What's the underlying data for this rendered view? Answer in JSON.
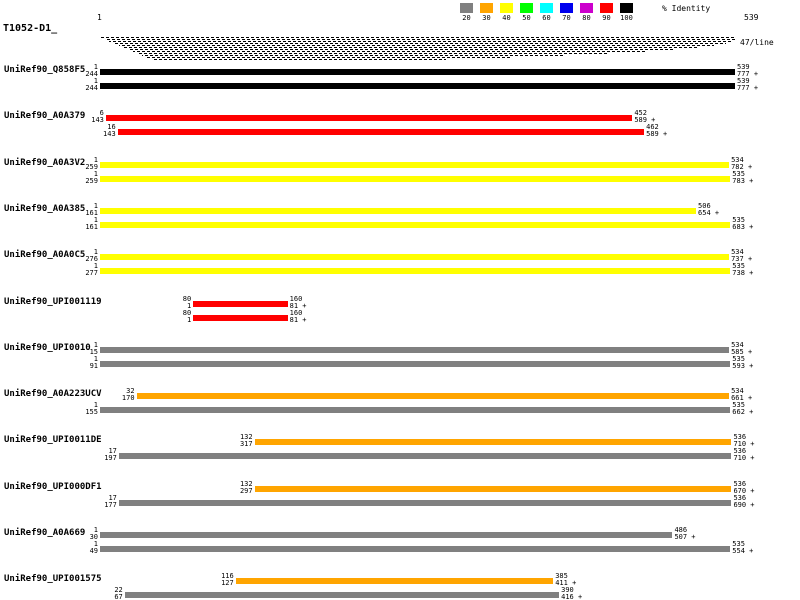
{
  "page": {
    "query_label": "T1052-D1_",
    "axis_start": "1",
    "axis_end": "539",
    "per_line": "47/line",
    "legend_title": "% Identity"
  },
  "legend_items": [
    {
      "label": "20",
      "color": "#808080"
    },
    {
      "label": "30",
      "color": "#FFA500"
    },
    {
      "label": "40",
      "color": "#FFFF00"
    },
    {
      "label": "50",
      "color": "#00FF00"
    },
    {
      "label": "60",
      "color": "#00FFFF"
    },
    {
      "label": "70",
      "color": "#0000EE"
    },
    {
      "label": "80",
      "color": "#CC00CC"
    },
    {
      "label": "90",
      "color": "#FF0000"
    },
    {
      "label": "100",
      "color": "#000000"
    }
  ],
  "chart_data": {
    "type": "bar",
    "title": "Alignment coverage of query T1052-D1 (length 539) colored by % identity",
    "x_axis": {
      "label": "query position",
      "min": 1,
      "max": 539
    },
    "legend_position": "top-right",
    "hatch_lines": [
      {
        "from": 2,
        "to": 539
      },
      {
        "from": 5,
        "to": 539
      },
      {
        "from": 9,
        "to": 537
      },
      {
        "from": 13,
        "to": 531
      },
      {
        "from": 17,
        "to": 521
      },
      {
        "from": 21,
        "to": 507
      },
      {
        "from": 25,
        "to": 488
      },
      {
        "from": 29,
        "to": 463
      },
      {
        "from": 33,
        "to": 432
      },
      {
        "from": 37,
        "to": 394
      },
      {
        "from": 41,
        "to": 348
      },
      {
        "from": 45,
        "to": 294
      }
    ],
    "hits": [
      {
        "label": "UniRef90_Q858F5",
        "alignments": [
          {
            "identity_bin": "100",
            "color": "#000000",
            "query_start": 1,
            "query_end": 539,
            "subject_start": 244,
            "subject_end": 777,
            "strand": "+"
          },
          {
            "identity_bin": "100",
            "color": "#000000",
            "query_start": 1,
            "query_end": 539,
            "subject_start": 244,
            "subject_end": 777,
            "strand": "+"
          }
        ]
      },
      {
        "label": "UniRef90_A0A379",
        "alignments": [
          {
            "identity_bin": "90",
            "color": "#FF0000",
            "query_start": 6,
            "query_end": 452,
            "subject_start": 143,
            "subject_end": 589,
            "strand": "+"
          },
          {
            "identity_bin": "90",
            "color": "#FF0000",
            "query_start": 16,
            "query_end": 462,
            "subject_start": 143,
            "subject_end": 589,
            "strand": "+"
          }
        ]
      },
      {
        "label": "UniRef90_A0A3V2",
        "alignments": [
          {
            "identity_bin": "40",
            "color": "#FFFF00",
            "query_start": 1,
            "query_end": 534,
            "subject_start": 259,
            "subject_end": 782,
            "strand": "+"
          },
          {
            "identity_bin": "40",
            "color": "#FFFF00",
            "query_start": 1,
            "query_end": 535,
            "subject_start": 259,
            "subject_end": 783,
            "strand": "+"
          }
        ]
      },
      {
        "label": "UniRef90_A0A385",
        "alignments": [
          {
            "identity_bin": "40",
            "color": "#FFFF00",
            "query_start": 1,
            "query_end": 506,
            "subject_start": 161,
            "subject_end": 654,
            "strand": "+"
          },
          {
            "identity_bin": "40",
            "color": "#FFFF00",
            "query_start": 1,
            "query_end": 535,
            "subject_start": 161,
            "subject_end": 683,
            "strand": "+"
          }
        ]
      },
      {
        "label": "UniRef90_A0A0C5",
        "alignments": [
          {
            "identity_bin": "40",
            "color": "#FFFF00",
            "query_start": 1,
            "query_end": 534,
            "subject_start": 276,
            "subject_end": 737,
            "strand": "+"
          },
          {
            "identity_bin": "40",
            "color": "#FFFF00",
            "query_start": 1,
            "query_end": 535,
            "subject_start": 277,
            "subject_end": 738,
            "strand": "+"
          }
        ]
      },
      {
        "label": "UniRef90_UPI001119",
        "alignments": [
          {
            "identity_bin": "90",
            "color": "#FF0000",
            "query_start": 80,
            "query_end": 160,
            "subject_start": 1,
            "subject_end": 81,
            "strand": "+"
          },
          {
            "identity_bin": "90",
            "color": "#FF0000",
            "query_start": 80,
            "query_end": 160,
            "subject_start": 1,
            "subject_end": 81,
            "strand": "+"
          }
        ]
      },
      {
        "label": "UniRef90_UPI0010",
        "alignments": [
          {
            "identity_bin": "20",
            "color": "#808080",
            "query_start": 1,
            "query_end": 534,
            "subject_start": 15,
            "subject_end": 585,
            "strand": "+"
          },
          {
            "identity_bin": "20",
            "color": "#808080",
            "query_start": 1,
            "query_end": 535,
            "subject_start": 91,
            "subject_end": 593,
            "strand": "+"
          }
        ]
      },
      {
        "label": "UniRef90_A0A223UCV",
        "alignments": [
          {
            "identity_bin": "30",
            "color": "#FFA500",
            "query_start": 32,
            "query_end": 534,
            "subject_start": 170,
            "subject_end": 661,
            "strand": "+"
          },
          {
            "identity_bin": "20",
            "color": "#808080",
            "query_start": 1,
            "query_end": 535,
            "subject_start": 155,
            "subject_end": 662,
            "strand": "+"
          }
        ]
      },
      {
        "label": "UniRef90_UPI0011DE",
        "alignments": [
          {
            "identity_bin": "30",
            "color": "#FFA500",
            "query_start": 132,
            "query_end": 536,
            "subject_start": 317,
            "subject_end": 710,
            "strand": "+"
          },
          {
            "identity_bin": "20",
            "color": "#808080",
            "query_start": 17,
            "query_end": 536,
            "subject_start": 197,
            "subject_end": 710,
            "strand": "+"
          }
        ]
      },
      {
        "label": "UniRef90_UPI000DF1",
        "alignments": [
          {
            "identity_bin": "30",
            "color": "#FFA500",
            "query_start": 132,
            "query_end": 536,
            "subject_start": 297,
            "subject_end": 670,
            "strand": "+"
          },
          {
            "identity_bin": "20",
            "color": "#808080",
            "query_start": 17,
            "query_end": 536,
            "subject_start": 177,
            "subject_end": 690,
            "strand": "+"
          }
        ]
      },
      {
        "label": "UniRef90_A0A669",
        "alignments": [
          {
            "identity_bin": "20",
            "color": "#808080",
            "query_start": 1,
            "query_end": 486,
            "subject_start": 30,
            "subject_end": 507,
            "strand": "+"
          },
          {
            "identity_bin": "20",
            "color": "#808080",
            "query_start": 1,
            "query_end": 535,
            "subject_start": 49,
            "subject_end": 554,
            "strand": "+"
          }
        ]
      },
      {
        "label": "UniRef90_UPI001575",
        "alignments": [
          {
            "identity_bin": "30",
            "color": "#FFA500",
            "query_start": 116,
            "query_end": 385,
            "subject_start": 127,
            "subject_end": 411,
            "strand": "+"
          },
          {
            "identity_bin": "20",
            "color": "#808080",
            "query_start": 22,
            "query_end": 390,
            "subject_start": 67,
            "subject_end": 416,
            "strand": "+"
          }
        ]
      }
    ]
  }
}
